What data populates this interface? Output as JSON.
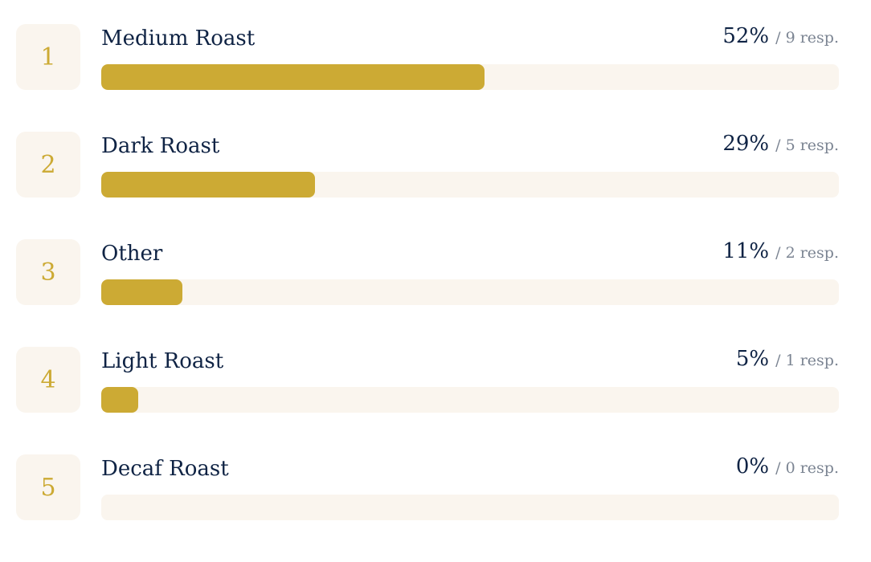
{
  "chart_data": {
    "type": "bar",
    "orientation": "horizontal",
    "categories": [
      "Medium Roast",
      "Dark Roast",
      "Other",
      "Light Roast",
      "Decaf Roast"
    ],
    "ranks": [
      "1",
      "2",
      "3",
      "4",
      "5"
    ],
    "values": [
      52,
      29,
      11,
      5,
      0
    ],
    "percent_labels": [
      "52%",
      "29%",
      "11%",
      "5%",
      "0%"
    ],
    "responses": [
      9,
      5,
      2,
      1,
      0
    ],
    "response_labels": [
      "/ 9 resp.",
      "/ 5 resp.",
      "/ 2 resp.",
      "/ 1 resp.",
      "/ 0 resp."
    ],
    "xlim": [
      0,
      100
    ],
    "bar_color": "#ccaa34",
    "track_color": "#faf5ee",
    "label_color": "#0f2344",
    "muted_color": "#7b8492"
  }
}
